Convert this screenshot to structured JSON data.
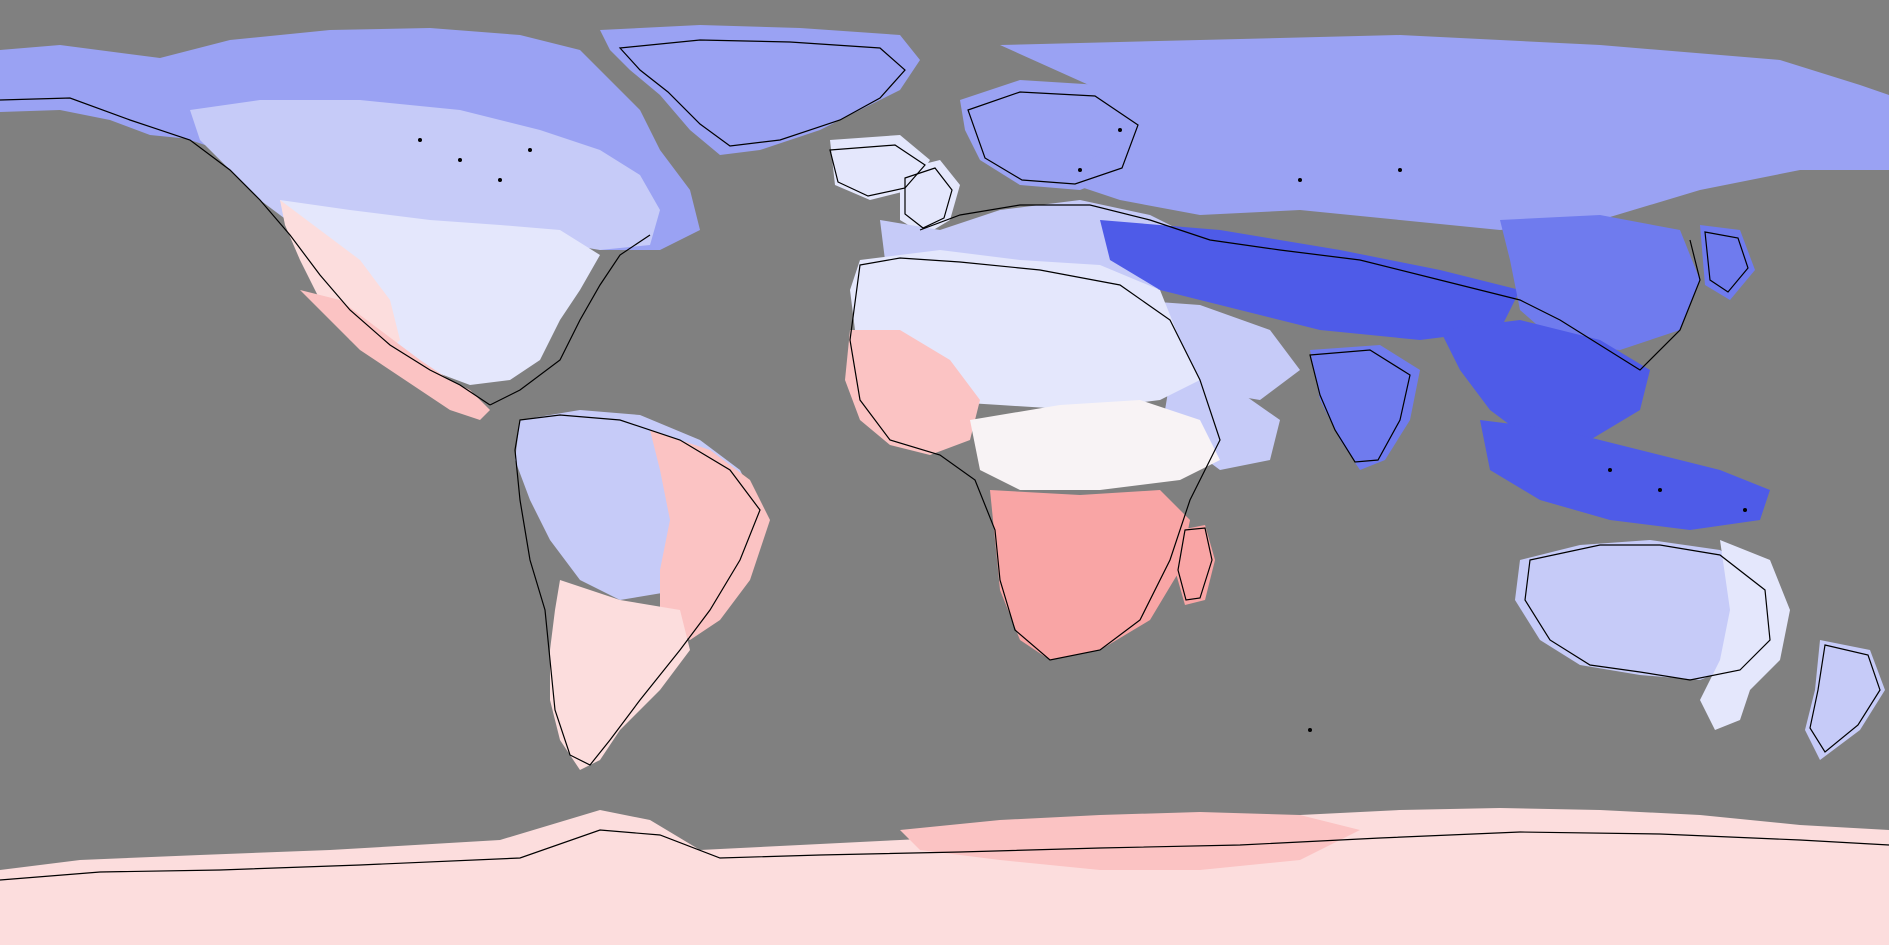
{
  "map": {
    "type": "global-anomaly-map",
    "projection": "equirectangular",
    "extent": {
      "lon": [
        -180,
        180
      ],
      "lat": [
        -90,
        90
      ]
    },
    "legend": "none",
    "colors": {
      "ocean_no_data": "#808080",
      "coastline": "#000000",
      "deep_blue": "#4E5BE8",
      "blue": "#6F7BEE",
      "mid_blue": "#9AA2F3",
      "light_blue": "#C6CBF8",
      "pale_blue": "#E4E7FC",
      "near_white": "#F8F3F5",
      "pale_red": "#FCDDDD",
      "light_red": "#FBC3C3",
      "red": "#F9A5A5"
    },
    "regions": [
      {
        "name": "alaska",
        "color": "mid_blue"
      },
      {
        "name": "canada-arctic",
        "color": "mid_blue"
      },
      {
        "name": "canada",
        "color": "light_blue"
      },
      {
        "name": "greenland",
        "color": "mid_blue"
      },
      {
        "name": "usa",
        "color": "pale_blue"
      },
      {
        "name": "usa-southwest",
        "color": "pale_red"
      },
      {
        "name": "mexico-central-america",
        "color": "light_red"
      },
      {
        "name": "iceland",
        "color": "pale_blue"
      },
      {
        "name": "uk-ireland",
        "color": "pale_blue"
      },
      {
        "name": "europe",
        "color": "light_blue"
      },
      {
        "name": "scandinavia",
        "color": "mid_blue"
      },
      {
        "name": "russia-siberia",
        "color": "mid_blue"
      },
      {
        "name": "central-asia-tibet",
        "color": "deep_blue"
      },
      {
        "name": "middle-east",
        "color": "light_blue"
      },
      {
        "name": "india",
        "color": "blue"
      },
      {
        "name": "southeast-asia",
        "color": "deep_blue"
      },
      {
        "name": "china-east",
        "color": "blue"
      },
      {
        "name": "japan",
        "color": "blue"
      },
      {
        "name": "indonesia",
        "color": "deep_blue"
      },
      {
        "name": "north-africa",
        "color": "pale_blue"
      },
      {
        "name": "west-africa",
        "color": "light_red"
      },
      {
        "name": "central-africa",
        "color": "near_white"
      },
      {
        "name": "southern-africa",
        "color": "red"
      },
      {
        "name": "madagascar",
        "color": "red"
      },
      {
        "name": "arabia",
        "color": "light_blue"
      },
      {
        "name": "south-america-north",
        "color": "light_blue"
      },
      {
        "name": "brazil-east",
        "color": "light_red"
      },
      {
        "name": "south-america-south",
        "color": "pale_red"
      },
      {
        "name": "australia",
        "color": "light_blue"
      },
      {
        "name": "australia-east",
        "color": "pale_blue"
      },
      {
        "name": "new-zealand",
        "color": "light_blue"
      },
      {
        "name": "antarctica",
        "color": "pale_red"
      },
      {
        "name": "antarctica-east",
        "color": "light_red"
      }
    ]
  }
}
